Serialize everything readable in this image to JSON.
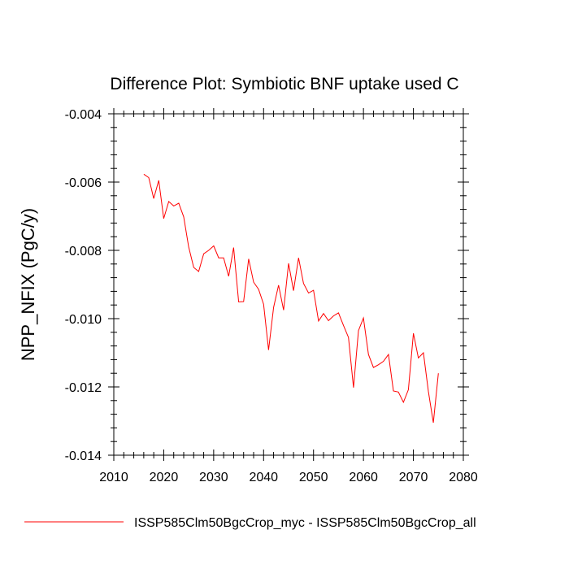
{
  "chart_data": {
    "type": "line",
    "title": "Difference Plot: Symbiotic BNF uptake used C",
    "xlabel": "",
    "ylabel": "NPP_NFIX  (PgC/y)",
    "xlim": [
      2010,
      2080
    ],
    "ylim": [
      -0.014,
      -0.004
    ],
    "xticks": [
      2010,
      2020,
      2030,
      2040,
      2050,
      2060,
      2070,
      2080
    ],
    "xtick_labels": [
      "2010",
      "2020",
      "2030",
      "2040",
      "2050",
      "2060",
      "2070",
      "2080"
    ],
    "yticks": [
      -0.014,
      -0.012,
      -0.01,
      -0.008,
      -0.006,
      -0.004
    ],
    "ytick_labels": [
      "-0.014",
      "-0.012",
      "-0.010",
      "-0.008",
      "-0.006",
      "-0.004"
    ],
    "grid": false,
    "legend_position": "bottom",
    "series": [
      {
        "name": "ISSP585Clm50BgcCrop_myc - ISSP585Clm50BgcCrop_all",
        "color": "#ff0000",
        "x": [
          2016,
          2017,
          2018,
          2019,
          2020,
          2021,
          2022,
          2023,
          2024,
          2025,
          2026,
          2027,
          2028,
          2029,
          2030,
          2031,
          2032,
          2033,
          2034,
          2035,
          2036,
          2037,
          2038,
          2039,
          2040,
          2041,
          2042,
          2043,
          2044,
          2045,
          2046,
          2047,
          2048,
          2049,
          2050,
          2051,
          2052,
          2053,
          2054,
          2055,
          2056,
          2057,
          2058,
          2059,
          2060,
          2061,
          2062,
          2063,
          2064,
          2065,
          2066,
          2067,
          2068,
          2069,
          2070,
          2071,
          2072,
          2073,
          2074,
          2075
        ],
        "y": [
          -0.00577,
          -0.00587,
          -0.00648,
          -0.00595,
          -0.00707,
          -0.00657,
          -0.0067,
          -0.00662,
          -0.00702,
          -0.0079,
          -0.0085,
          -0.00862,
          -0.0081,
          -0.008,
          -0.00787,
          -0.00822,
          -0.00822,
          -0.00876,
          -0.00792,
          -0.00951,
          -0.0095,
          -0.00825,
          -0.00893,
          -0.00914,
          -0.00958,
          -0.01092,
          -0.00967,
          -0.00902,
          -0.00975,
          -0.00838,
          -0.00918,
          -0.00822,
          -0.00897,
          -0.00925,
          -0.00917,
          -0.01007,
          -0.00985,
          -0.01006,
          -0.00992,
          -0.00983,
          -0.0102,
          -0.01055,
          -0.01202,
          -0.01035,
          -0.00998,
          -0.01105,
          -0.01143,
          -0.01135,
          -0.01125,
          -0.01105,
          -0.01212,
          -0.01215,
          -0.01245,
          -0.01208,
          -0.01043,
          -0.01115,
          -0.011,
          -0.01213,
          -0.01305,
          -0.0116
        ]
      }
    ]
  }
}
